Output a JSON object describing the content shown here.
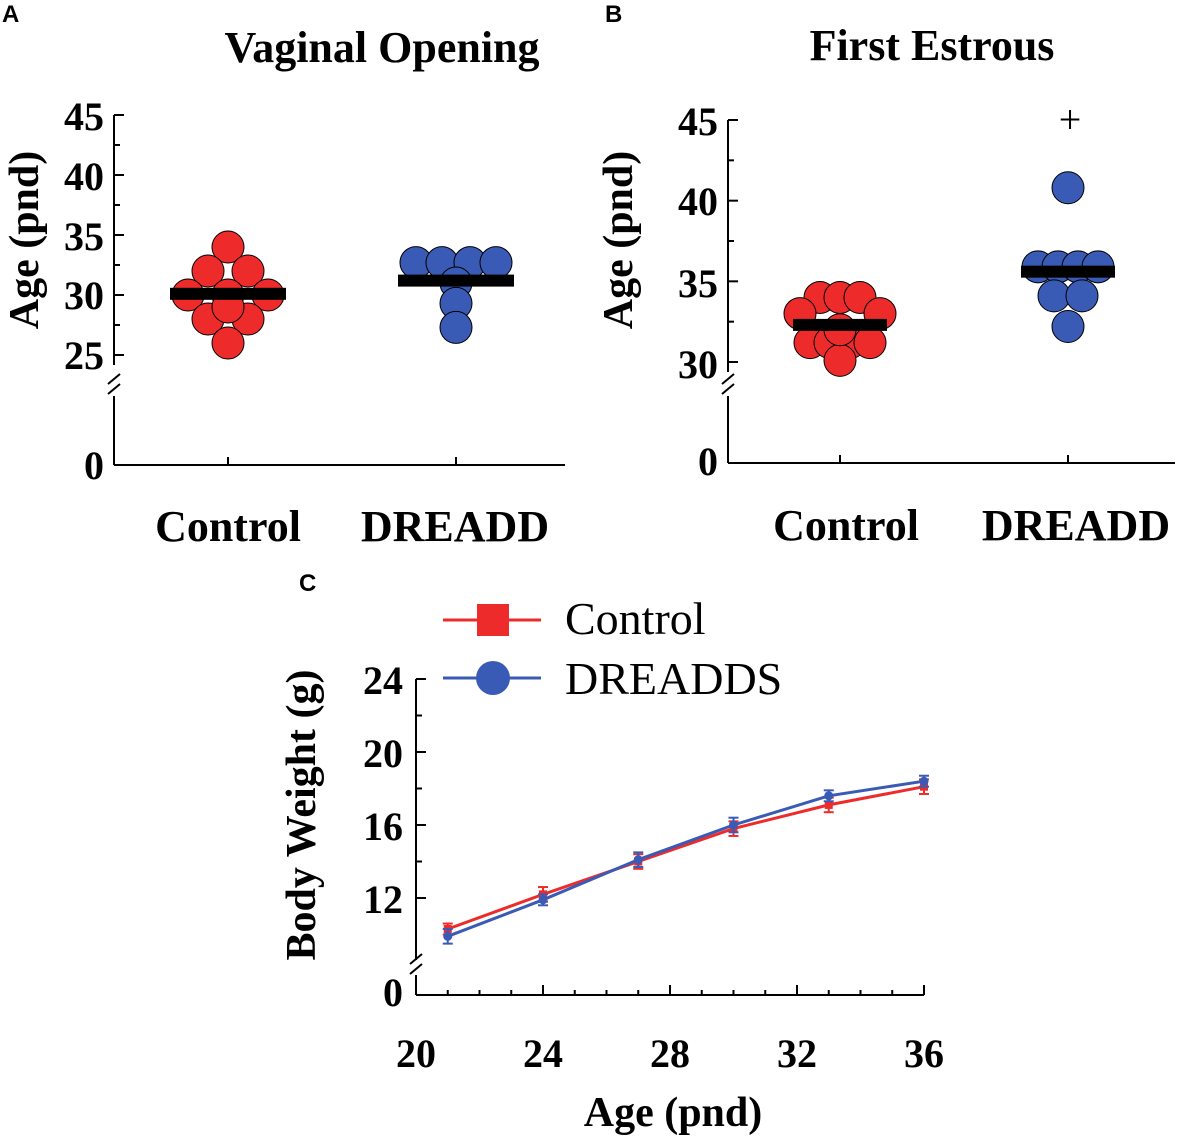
{
  "chart_data": [
    {
      "panel": "A",
      "type": "scatter",
      "title": "Vaginal Opening",
      "ylabel": "Age (pnd)",
      "xlabel": "",
      "categories": [
        "Control",
        "DREADD"
      ],
      "yticks": [
        "0",
        "25",
        "30",
        "35",
        "40",
        "45"
      ],
      "ylim": [
        25,
        45
      ],
      "axis_break": true,
      "series": [
        {
          "name": "Control",
          "color": "#ee2b2b",
          "points": [
            {
              "offset": 0,
              "y": 34
            },
            {
              "offset": -1,
              "y": 32
            },
            {
              "offset": 1,
              "y": 32
            },
            {
              "offset": -2,
              "y": 30
            },
            {
              "offset": 0,
              "y": 30
            },
            {
              "offset": 2,
              "y": 30
            },
            {
              "offset": -1,
              "y": 28
            },
            {
              "offset": 1,
              "y": 28
            },
            {
              "offset": 0,
              "y": 29
            },
            {
              "offset": 0,
              "y": 26
            }
          ],
          "mean": 30.1
        },
        {
          "name": "DREADD",
          "color": "#3a5bb5",
          "points": [
            {
              "offset": -2,
              "y": 32.7
            },
            {
              "offset": -0.7,
              "y": 32.7
            },
            {
              "offset": 0.7,
              "y": 32.7
            },
            {
              "offset": 2,
              "y": 32.7
            },
            {
              "offset": 0,
              "y": 31
            },
            {
              "offset": 0,
              "y": 29.3
            },
            {
              "offset": 0,
              "y": 27.3
            }
          ],
          "mean": 31.2
        }
      ]
    },
    {
      "panel": "B",
      "type": "scatter",
      "title": "First Estrous",
      "ylabel": "Age (pnd)",
      "xlabel": "",
      "categories": [
        "Control",
        "DREADD"
      ],
      "yticks": [
        "0",
        "30",
        "35",
        "40",
        "45"
      ],
      "ylim": [
        30,
        45
      ],
      "axis_break": true,
      "annotation": "+",
      "annotation_y": 45,
      "series": [
        {
          "name": "Control",
          "color": "#ee2b2b",
          "points": [
            {
              "offset": -1,
              "y": 34
            },
            {
              "offset": 0,
              "y": 34
            },
            {
              "offset": 1,
              "y": 34
            },
            {
              "offset": -2,
              "y": 33
            },
            {
              "offset": 2,
              "y": 33
            },
            {
              "offset": -1.5,
              "y": 31.2
            },
            {
              "offset": -0.5,
              "y": 31.2
            },
            {
              "offset": 0.5,
              "y": 31.2
            },
            {
              "offset": 1.5,
              "y": 31.2
            },
            {
              "offset": 0,
              "y": 30.1
            },
            {
              "offset": 0,
              "y": 32
            }
          ],
          "mean": 32.3
        },
        {
          "name": "DREADD",
          "color": "#3a5bb5",
          "points": [
            {
              "offset": 0,
              "y": 40.8
            },
            {
              "offset": -1.5,
              "y": 35.9
            },
            {
              "offset": -0.5,
              "y": 35.9
            },
            {
              "offset": 0.5,
              "y": 35.9
            },
            {
              "offset": 1.5,
              "y": 35.9
            },
            {
              "offset": -0.7,
              "y": 34.1
            },
            {
              "offset": 0.7,
              "y": 34.1
            },
            {
              "offset": 0,
              "y": 32.2
            }
          ],
          "mean": 35.6
        }
      ]
    },
    {
      "panel": "C",
      "type": "line",
      "title": "",
      "xlabel": "Age (pnd)",
      "ylabel": "Body Weight (g)",
      "xticks": [
        "20",
        "24",
        "28",
        "32",
        "36"
      ],
      "yticks": [
        "0",
        "12",
        "16",
        "20",
        "24"
      ],
      "xlim": [
        20,
        36
      ],
      "ylim": [
        10,
        24
      ],
      "axis_break": true,
      "x": [
        21,
        24,
        27,
        30,
        33,
        36
      ],
      "series": [
        {
          "name": "Control",
          "marker": "square",
          "color": "#ee2b2b",
          "values": [
            10.3,
            12.2,
            14.0,
            15.8,
            17.1,
            18.1
          ],
          "errors": [
            0.3,
            0.4,
            0.4,
            0.4,
            0.4,
            0.4
          ]
        },
        {
          "name": "DREADDS",
          "marker": "circle",
          "color": "#3a5bb5",
          "values": [
            9.9,
            11.9,
            14.1,
            16.0,
            17.6,
            18.4
          ],
          "errors": [
            0.4,
            0.3,
            0.4,
            0.4,
            0.3,
            0.3
          ]
        }
      ]
    }
  ]
}
